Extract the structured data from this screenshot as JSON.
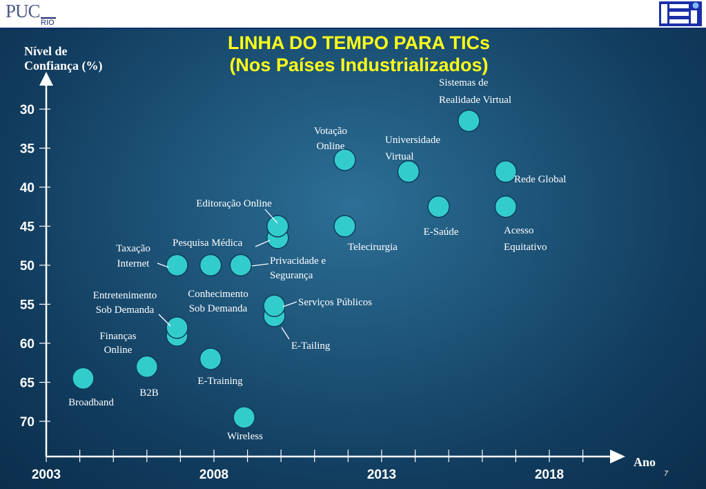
{
  "header": {
    "left_logo_text": "PUC",
    "left_logo_sub": "RIO",
    "right_logo_text": "ISI"
  },
  "title_line1": "LINHA DO TEMPO PARA TICs",
  "title_line2": "(Nos Países Industrializados)",
  "page_number": "7",
  "colors": {
    "point": "#33cccc",
    "title": "#ffff1a",
    "text": "#ffffff"
  },
  "chart_data": {
    "type": "scatter",
    "ylabel_line1": "Nível de",
    "ylabel_line2": "Confiança (%)",
    "xlabel": "Ano",
    "xlim": [
      2003,
      2020
    ],
    "ylim": [
      73,
      26
    ],
    "y_inverted": true,
    "xticks": [
      2003,
      2008,
      2013,
      2018
    ],
    "yticks": [
      30,
      35,
      40,
      45,
      50,
      55,
      60,
      65,
      70
    ],
    "points": [
      {
        "label": "Broadband",
        "x": 2004.1,
        "y": 64.5
      },
      {
        "label": "B2B",
        "x": 2006.0,
        "y": 63.0
      },
      {
        "label": "E-Training",
        "x": 2007.9,
        "y": 62.0
      },
      {
        "label": "Wireless",
        "x": 2008.9,
        "y": 69.5
      },
      {
        "label": "Finanças Online",
        "x": 2006.9,
        "y": 59.0
      },
      {
        "label": "Entretenimento Sob Demanda",
        "x": 2006.9,
        "y": 58.0
      },
      {
        "label": "Taxação Internet",
        "x": 2006.9,
        "y": 50.0
      },
      {
        "label": "Conhecimento Sob Demanda",
        "x": 2007.9,
        "y": 50.0
      },
      {
        "label": "Privacidade e Segurança",
        "x": 2008.8,
        "y": 50.0
      },
      {
        "label": "Pesquisa Médica",
        "x": 2009.9,
        "y": 46.5
      },
      {
        "label": "Editoração Online",
        "x": 2009.9,
        "y": 45.0
      },
      {
        "label": "E-Tailing",
        "x": 2009.8,
        "y": 56.5
      },
      {
        "label": "Serviços Públicos",
        "x": 2009.8,
        "y": 55.2
      },
      {
        "label": "Telecirurgia",
        "x": 2011.9,
        "y": 45.0
      },
      {
        "label": "Votação Online",
        "x": 2011.9,
        "y": 36.5
      },
      {
        "label": "Universidade Virtual",
        "x": 2013.8,
        "y": 38.0
      },
      {
        "label": "E-Saúde",
        "x": 2014.7,
        "y": 42.5
      },
      {
        "label": "Acesso Equitativo",
        "x": 2016.7,
        "y": 42.5
      },
      {
        "label": "Rede Global",
        "x": 2016.7,
        "y": 38.0
      },
      {
        "label": "Sistemas de Realidade Virtual",
        "x": 2015.6,
        "y": 31.5
      }
    ],
    "annotations": [
      {
        "lines": [
          "Broadband"
        ]
      },
      {
        "lines": [
          "B2B"
        ]
      },
      {
        "lines": [
          "E-Training"
        ]
      },
      {
        "lines": [
          "Wireless"
        ]
      },
      {
        "lines": [
          "Finanças",
          "Online"
        ]
      },
      {
        "lines": [
          "Entretenimento",
          "Sob Demanda"
        ]
      },
      {
        "lines": [
          "Taxação",
          "Internet"
        ]
      },
      {
        "lines": [
          "Conhecimento",
          "Sob Demanda"
        ]
      },
      {
        "lines": [
          "Privacidade e",
          "Segurança"
        ]
      },
      {
        "lines": [
          "Pesquisa Médica"
        ]
      },
      {
        "lines": [
          "Editoração Online"
        ]
      },
      {
        "lines": [
          "E-Tailing"
        ]
      },
      {
        "lines": [
          "Serviços Públicos"
        ]
      },
      {
        "lines": [
          "Telecirurgia"
        ]
      },
      {
        "lines": [
          "Votação",
          "Online"
        ]
      },
      {
        "lines": [
          "Universidade",
          "Virtual"
        ]
      },
      {
        "lines": [
          "E-Saúde"
        ]
      },
      {
        "lines": [
          "Acesso",
          "Equitativo"
        ]
      },
      {
        "lines": [
          "Rede Global"
        ]
      },
      {
        "lines": [
          "Sistemas de",
          "Realidade Virtual"
        ]
      }
    ]
  }
}
